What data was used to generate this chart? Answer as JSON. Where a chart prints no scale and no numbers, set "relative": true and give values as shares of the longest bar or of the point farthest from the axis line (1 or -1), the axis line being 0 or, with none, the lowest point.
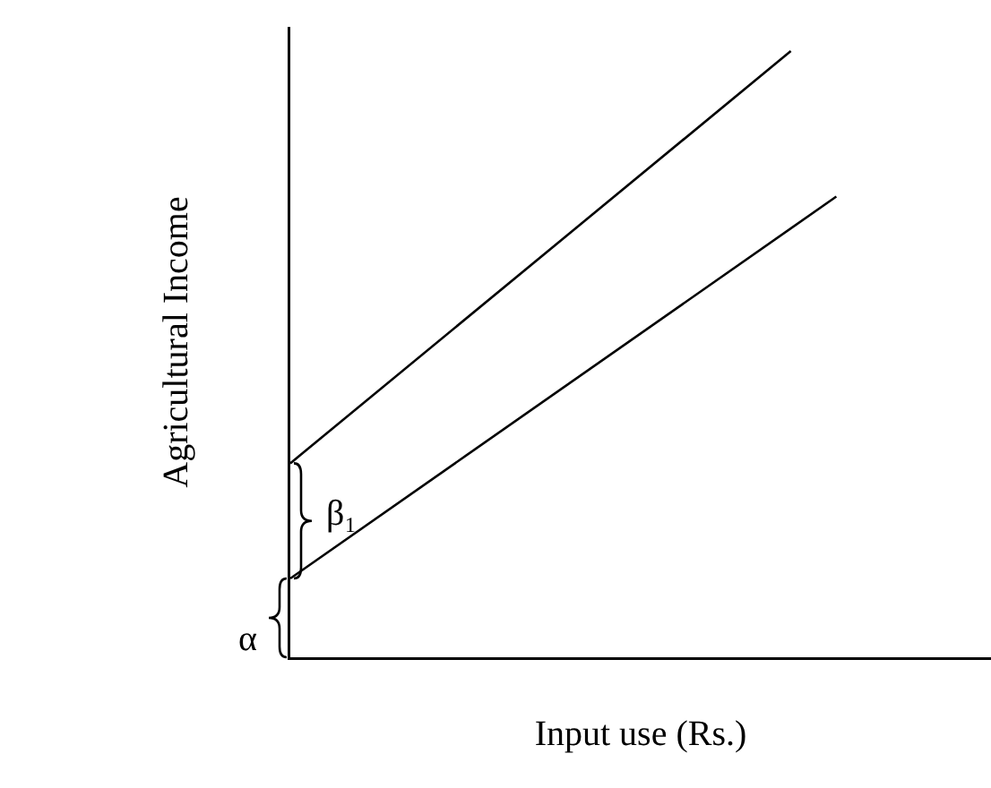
{
  "chart_data": {
    "type": "line",
    "relative": true,
    "xlabel": "Input use (Rs.)",
    "ylabel": "Agricultural Income",
    "marker": "none",
    "line_style": "solid",
    "grid": false,
    "categories": [
      null,
      null,
      null,
      null,
      null,
      null,
      null,
      null,
      null,
      null,
      null,
      null,
      null,
      null,
      null,
      null
    ],
    "series": [
      {
        "color": "#000000",
        "values": [
          0.32,
          null,
          null,
          null,
          null,
          null,
          null,
          null,
          null,
          null,
          null,
          1.0,
          null,
          null,
          null,
          null
        ]
      },
      {
        "color": "#000000",
        "values": [
          0.13,
          null,
          null,
          null,
          null,
          null,
          null,
          null,
          null,
          null,
          null,
          null,
          0.76,
          null,
          null,
          null
        ]
      }
    ],
    "annotations": [
      "α",
      "β₁"
    ]
  }
}
